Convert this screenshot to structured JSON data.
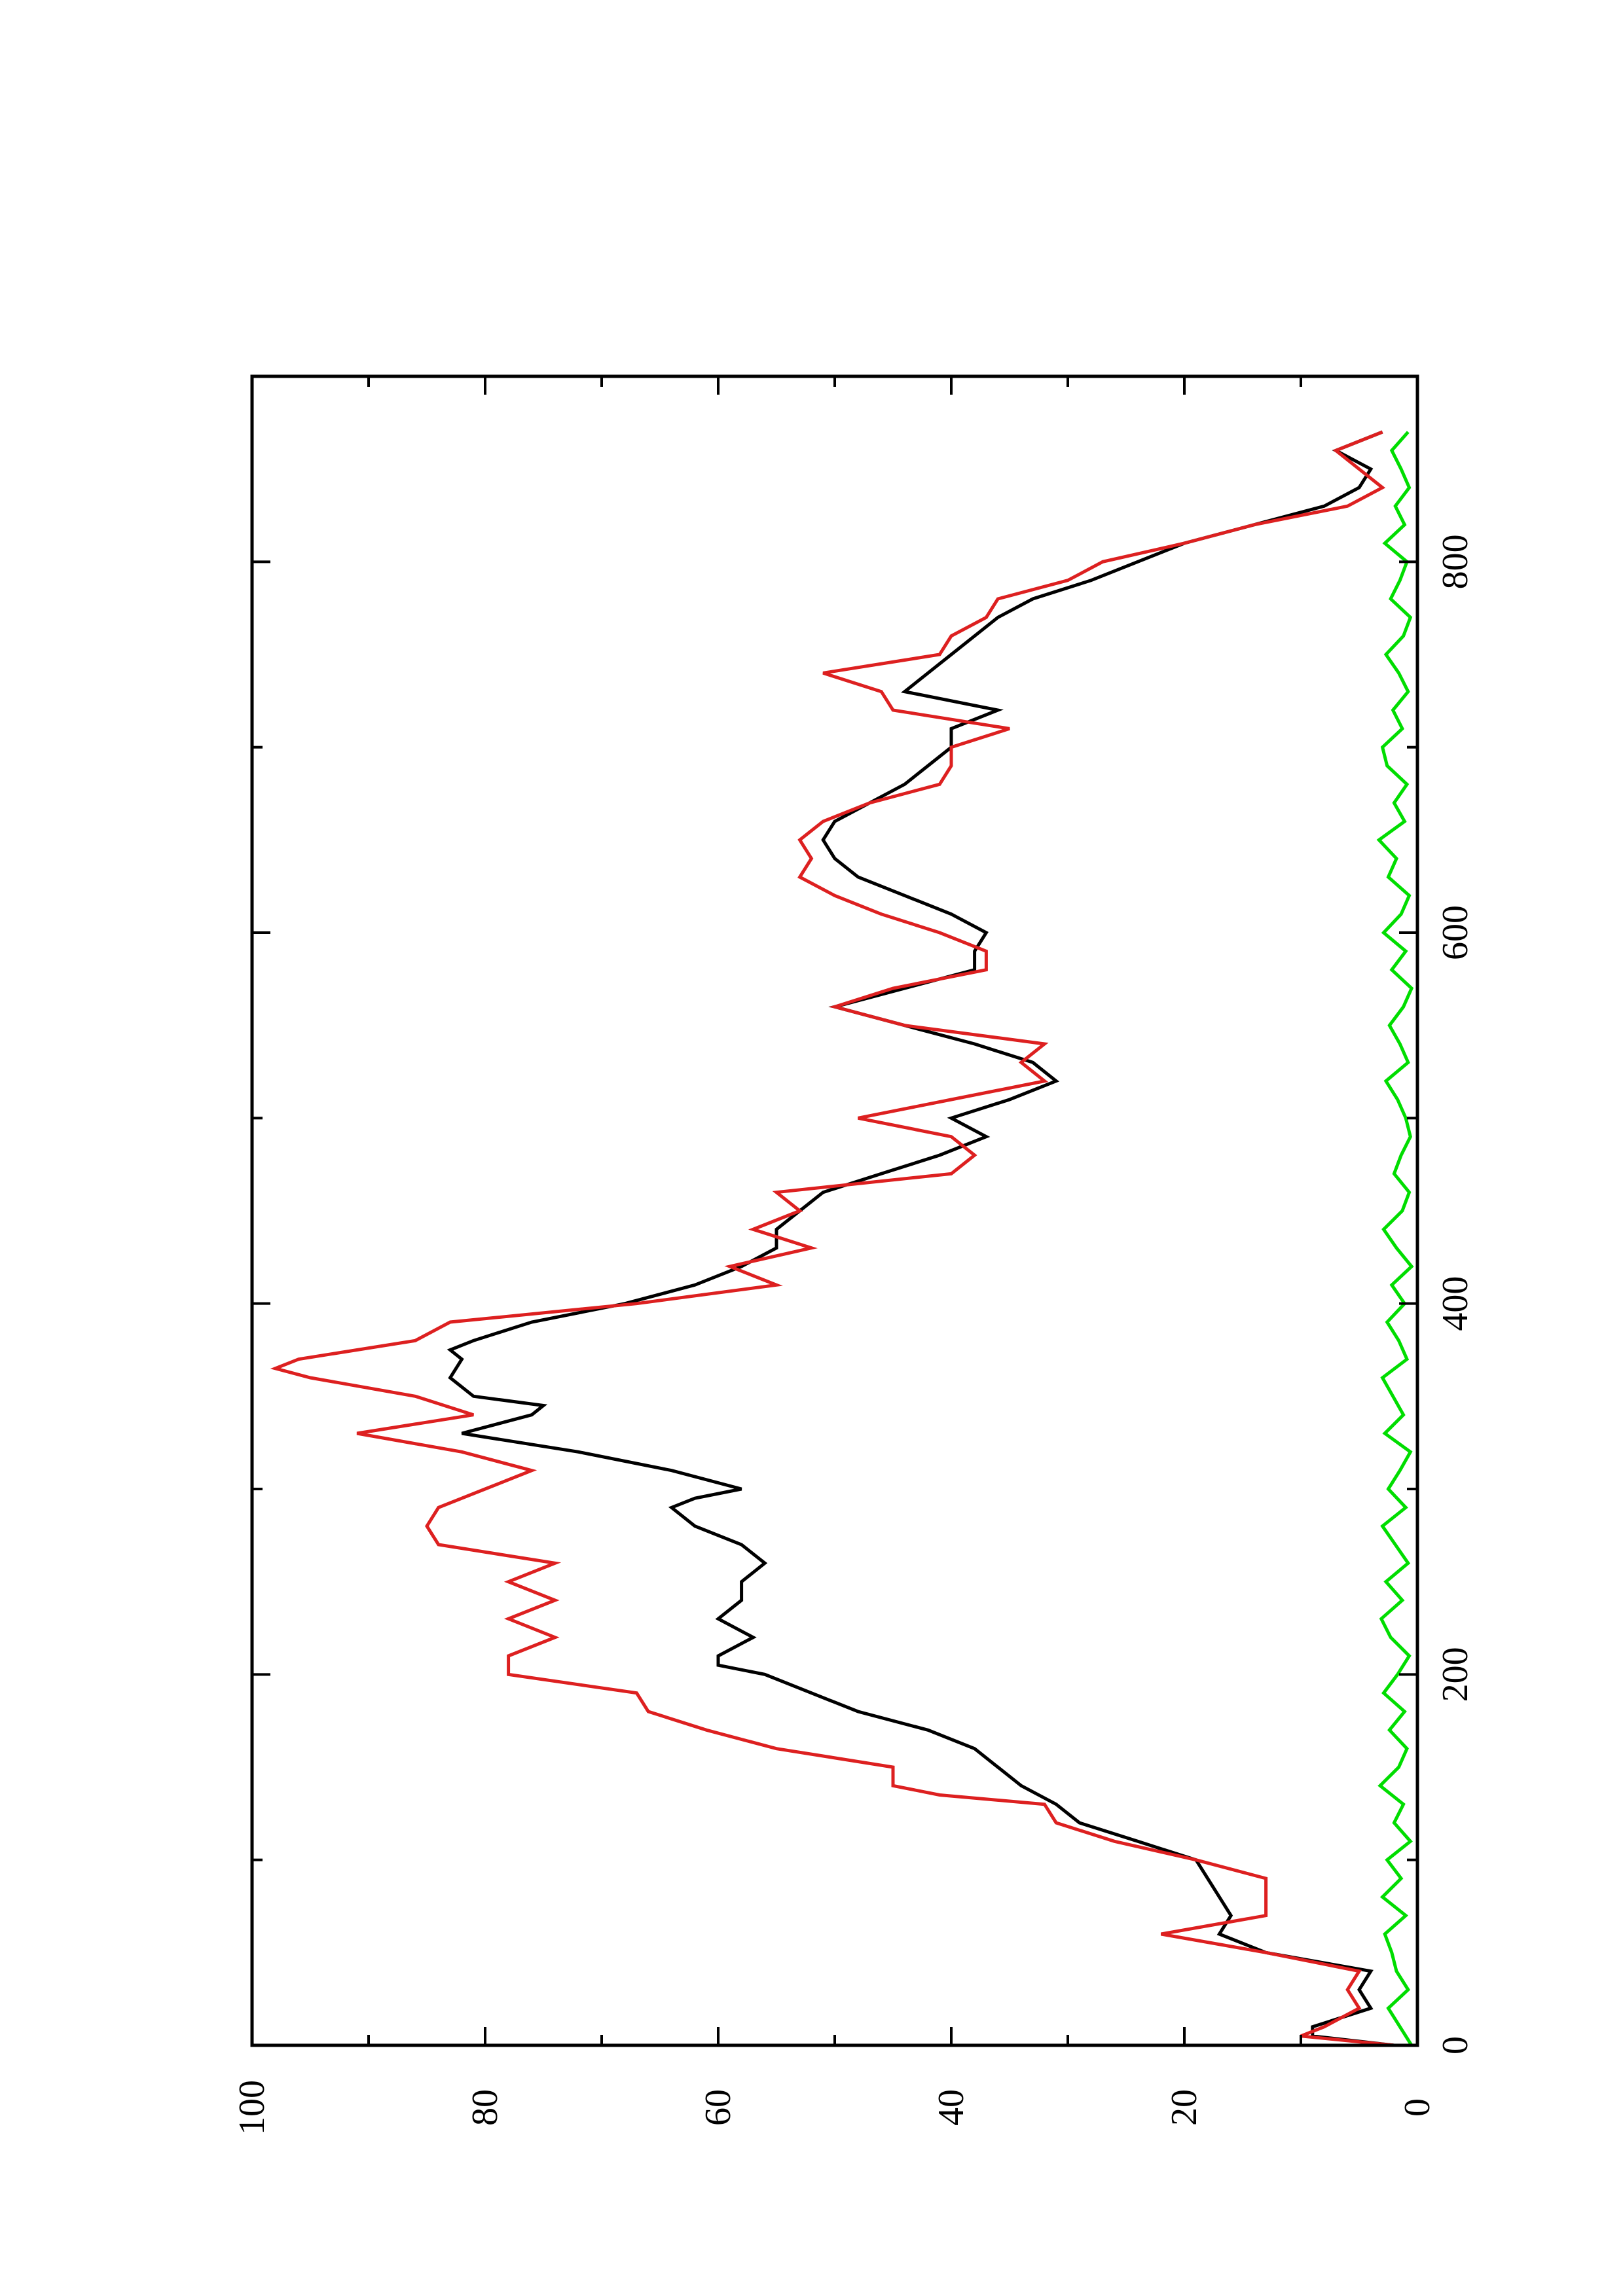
{
  "chart_data": {
    "type": "line",
    "orientation": "rotated-90-clockwise",
    "xlim": [
      0,
      900
    ],
    "ylim": [
      0,
      100
    ],
    "x_ticks": [
      0,
      200,
      400,
      600,
      800
    ],
    "y_ticks": [
      0,
      20,
      40,
      60,
      80,
      100
    ],
    "x_minor_step": 100,
    "y_minor_step": 10,
    "grid": false,
    "series": [
      {
        "color": "#000000",
        "x": [
          0,
          5,
          10,
          20,
          30,
          40,
          50,
          60,
          70,
          80,
          90,
          100,
          110,
          120,
          130,
          140,
          150,
          160,
          170,
          180,
          190,
          200,
          205,
          210,
          220,
          230,
          240,
          250,
          260,
          270,
          280,
          290,
          295,
          300,
          310,
          320,
          330,
          340,
          345,
          350,
          360,
          370,
          375,
          380,
          390,
          400,
          410,
          420,
          430,
          440,
          450,
          460,
          470,
          480,
          490,
          500,
          510,
          520,
          530,
          540,
          550,
          560,
          570,
          580,
          590,
          600,
          610,
          620,
          630,
          640,
          650,
          660,
          670,
          680,
          690,
          700,
          710,
          720,
          730,
          740,
          750,
          760,
          770,
          780,
          790,
          800,
          810,
          820,
          830,
          840,
          850,
          860,
          870
        ],
        "y": [
          2,
          9,
          9,
          4,
          5,
          4,
          13,
          17,
          16,
          17,
          18,
          19,
          24,
          29,
          31,
          34,
          36,
          38,
          42,
          48,
          52,
          56,
          60,
          60,
          57,
          60,
          58,
          58,
          56,
          58,
          62,
          64,
          62,
          58,
          64,
          72,
          82,
          76,
          75,
          81,
          83,
          82,
          83,
          81,
          76,
          68,
          62,
          58,
          55,
          55,
          53,
          51,
          46,
          41,
          37,
          40,
          35,
          31,
          33,
          38,
          44,
          50,
          44,
          38,
          38,
          37,
          40,
          44,
          48,
          50,
          51,
          50,
          47,
          44,
          42,
          40,
          40,
          36,
          44,
          42,
          40,
          38,
          36,
          33,
          28,
          24,
          20,
          14,
          8,
          5,
          4,
          7,
          3
        ]
      },
      {
        "color": "#dd2020",
        "x": [
          0,
          5,
          10,
          20,
          30,
          40,
          50,
          60,
          70,
          80,
          90,
          100,
          110,
          120,
          130,
          135,
          140,
          150,
          160,
          170,
          180,
          190,
          200,
          210,
          220,
          230,
          240,
          250,
          260,
          270,
          280,
          290,
          300,
          310,
          320,
          330,
          340,
          350,
          360,
          365,
          370,
          380,
          390,
          400,
          410,
          420,
          430,
          440,
          450,
          460,
          470,
          480,
          490,
          500,
          510,
          520,
          530,
          540,
          550,
          560,
          570,
          580,
          590,
          600,
          610,
          620,
          630,
          640,
          650,
          660,
          670,
          680,
          690,
          700,
          710,
          720,
          730,
          740,
          750,
          760,
          770,
          780,
          790,
          800,
          810,
          820,
          830,
          840,
          850,
          860,
          870
        ],
        "y": [
          2,
          10,
          8,
          5,
          6,
          5,
          13,
          22,
          13,
          13,
          13,
          19,
          26,
          31,
          32,
          41,
          45,
          45,
          55,
          61,
          66,
          67,
          78,
          78,
          74,
          78,
          74,
          78,
          74,
          84,
          85,
          84,
          80,
          76,
          82,
          91,
          81,
          86,
          95,
          98,
          96,
          86,
          83,
          67,
          55,
          59,
          52,
          57,
          53,
          55,
          40,
          38,
          40,
          48,
          40,
          32,
          34,
          32,
          44,
          50,
          45,
          37,
          37,
          41,
          46,
          50,
          53,
          52,
          53,
          51,
          47,
          41,
          40,
          40,
          35,
          45,
          46,
          51,
          41,
          40,
          37,
          36,
          30,
          27,
          20,
          14,
          6,
          3,
          5,
          7,
          3
        ]
      },
      {
        "color": "#00dd00",
        "x": [
          0,
          10,
          20,
          30,
          40,
          50,
          60,
          70,
          80,
          90,
          100,
          110,
          120,
          130,
          140,
          150,
          160,
          170,
          180,
          190,
          200,
          210,
          220,
          230,
          240,
          250,
          260,
          270,
          280,
          290,
          300,
          310,
          320,
          330,
          340,
          350,
          360,
          370,
          380,
          390,
          400,
          410,
          420,
          430,
          440,
          450,
          460,
          470,
          480,
          490,
          500,
          510,
          520,
          530,
          540,
          550,
          560,
          570,
          580,
          590,
          600,
          610,
          620,
          630,
          640,
          650,
          660,
          670,
          680,
          690,
          700,
          710,
          720,
          730,
          740,
          750,
          760,
          770,
          780,
          790,
          800,
          810,
          820,
          830,
          840,
          850,
          860,
          870
        ],
        "y": [
          0.5,
          1.5,
          2.5,
          0.8,
          1.8,
          2.2,
          2.8,
          1.0,
          3.0,
          1.4,
          2.6,
          0.6,
          2.0,
          1.2,
          3.2,
          1.6,
          0.9,
          2.4,
          1.1,
          2.9,
          1.7,
          0.7,
          2.3,
          3.1,
          1.3,
          2.7,
          0.8,
          1.9,
          3.0,
          1.0,
          2.5,
          1.5,
          0.6,
          2.8,
          1.2,
          2.1,
          3.0,
          0.9,
          1.6,
          2.6,
          1.1,
          2.2,
          0.5,
          1.8,
          2.9,
          1.3,
          0.7,
          2.0,
          1.4,
          0.6,
          1.0,
          1.7,
          2.7,
          0.8,
          1.5,
          2.4,
          1.2,
          0.5,
          2.2,
          1.0,
          2.9,
          1.4,
          0.7,
          2.5,
          1.8,
          3.3,
          1.1,
          2.0,
          0.9,
          2.6,
          3.0,
          1.3,
          2.1,
          0.8,
          1.6,
          2.7,
          1.2,
          0.6,
          2.3,
          1.5,
          0.9,
          2.8,
          1.1,
          1.9,
          0.7,
          1.4,
          2.2,
          0.8
        ]
      }
    ]
  }
}
